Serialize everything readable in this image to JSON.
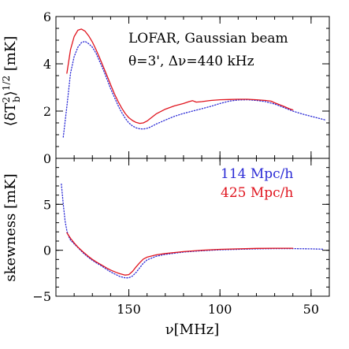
{
  "chart_data": [
    {
      "type": "line",
      "panel": "top",
      "xlabel": "",
      "ylabel": "⟨δT_b²⟩^(1/2) [mK]",
      "xlim": [
        190,
        40
      ],
      "ylim": [
        0,
        6
      ],
      "x_ticks": [
        150,
        100,
        50
      ],
      "x_tick_labels": [
        "",
        "",
        ""
      ],
      "y_ticks": [
        0,
        2,
        4,
        6
      ],
      "y_tick_labels": [
        "0",
        "2",
        "4",
        "6"
      ],
      "y_minor_step": 0.5,
      "x_minor_step": 10,
      "annotations": [
        "LOFAR, Gaussian beam",
        "θ=3', Δν=440 kHz"
      ],
      "series": [
        {
          "name": "114 Mpc/h",
          "color": "#2b2bd6",
          "style": "dotted",
          "x": [
            186,
            184,
            182,
            180,
            178,
            176,
            174,
            172,
            170,
            168,
            166,
            164,
            162,
            160,
            158,
            156,
            154,
            152,
            150,
            148,
            146,
            144,
            142,
            140,
            138,
            135,
            130,
            125,
            120,
            115,
            110,
            105,
            100,
            95,
            90,
            85,
            80,
            75,
            70,
            65,
            60,
            55,
            50,
            46,
            42
          ],
          "values": [
            0.9,
            2.2,
            3.6,
            4.3,
            4.7,
            4.9,
            4.95,
            4.85,
            4.7,
            4.45,
            4.1,
            3.75,
            3.35,
            2.95,
            2.6,
            2.25,
            1.95,
            1.7,
            1.5,
            1.37,
            1.29,
            1.25,
            1.24,
            1.27,
            1.33,
            1.45,
            1.62,
            1.78,
            1.9,
            2.0,
            2.1,
            2.2,
            2.32,
            2.42,
            2.47,
            2.48,
            2.45,
            2.4,
            2.3,
            2.15,
            2.0,
            1.88,
            1.78,
            1.7,
            1.62
          ]
        },
        {
          "name": "425 Mpc/h",
          "color": "#e0141e",
          "style": "solid",
          "x": [
            184,
            182,
            180,
            178,
            176,
            174,
            172,
            170,
            168,
            166,
            164,
            162,
            160,
            158,
            156,
            154,
            152,
            150,
            148,
            146,
            144,
            142,
            140,
            138,
            135,
            130,
            125,
            120,
            117,
            115,
            113,
            110,
            105,
            100,
            95,
            90,
            85,
            80,
            75,
            72,
            70,
            65,
            62,
            60
          ],
          "values": [
            3.6,
            4.6,
            5.15,
            5.42,
            5.47,
            5.38,
            5.18,
            4.92,
            4.6,
            4.25,
            3.88,
            3.5,
            3.12,
            2.75,
            2.42,
            2.14,
            1.9,
            1.72,
            1.6,
            1.52,
            1.48,
            1.5,
            1.58,
            1.7,
            1.88,
            2.08,
            2.22,
            2.32,
            2.4,
            2.44,
            2.38,
            2.4,
            2.45,
            2.48,
            2.49,
            2.5,
            2.5,
            2.48,
            2.45,
            2.42,
            2.35,
            2.2,
            2.1,
            2.05
          ]
        }
      ]
    },
    {
      "type": "line",
      "panel": "bottom",
      "xlabel": "ν[MHz]",
      "ylabel": "skewness [mK]",
      "xlim": [
        190,
        40
      ],
      "ylim": [
        -5,
        10
      ],
      "x_ticks": [
        150,
        100,
        50
      ],
      "x_tick_labels": [
        "150",
        "100",
        "50"
      ],
      "y_ticks": [
        -5,
        0,
        5
      ],
      "y_tick_labels": [
        "−5",
        "0",
        "5"
      ],
      "y_minor_step": 1,
      "x_minor_step": 10,
      "legend_position": "top-right",
      "series": [
        {
          "name": "114 Mpc/h",
          "color": "#2b2bd6",
          "style": "dotted",
          "x": [
            187,
            186,
            185,
            184,
            183,
            182,
            180,
            178,
            175,
            172,
            170,
            168,
            165,
            162,
            160,
            157,
            155,
            152,
            150,
            148,
            146,
            144,
            142,
            140,
            135,
            130,
            120,
            110,
            100,
            90,
            80,
            70,
            60,
            50,
            43
          ],
          "values": [
            7.2,
            5.0,
            3.2,
            2.1,
            1.5,
            1.1,
            0.7,
            0.3,
            -0.3,
            -0.8,
            -1.1,
            -1.35,
            -1.7,
            -2.1,
            -2.35,
            -2.65,
            -2.85,
            -3.0,
            -3.0,
            -2.8,
            -2.4,
            -1.9,
            -1.4,
            -1.05,
            -0.65,
            -0.45,
            -0.2,
            -0.05,
            0.05,
            0.1,
            0.15,
            0.18,
            0.18,
            0.15,
            0.12
          ]
        },
        {
          "name": "425 Mpc/h",
          "color": "#e0141e",
          "style": "solid",
          "x": [
            184,
            182,
            180,
            178,
            175,
            172,
            170,
            168,
            165,
            162,
            160,
            157,
            155,
            152,
            150,
            148,
            146,
            144,
            142,
            140,
            135,
            130,
            120,
            110,
            100,
            90,
            80,
            70,
            60
          ],
          "values": [
            1.9,
            1.3,
            0.8,
            0.35,
            -0.2,
            -0.7,
            -1.0,
            -1.25,
            -1.6,
            -1.95,
            -2.15,
            -2.4,
            -2.55,
            -2.7,
            -2.65,
            -2.3,
            -1.8,
            -1.35,
            -0.95,
            -0.75,
            -0.5,
            -0.35,
            -0.15,
            0.0,
            0.1,
            0.15,
            0.2,
            0.22,
            0.22
          ]
        }
      ]
    }
  ]
}
